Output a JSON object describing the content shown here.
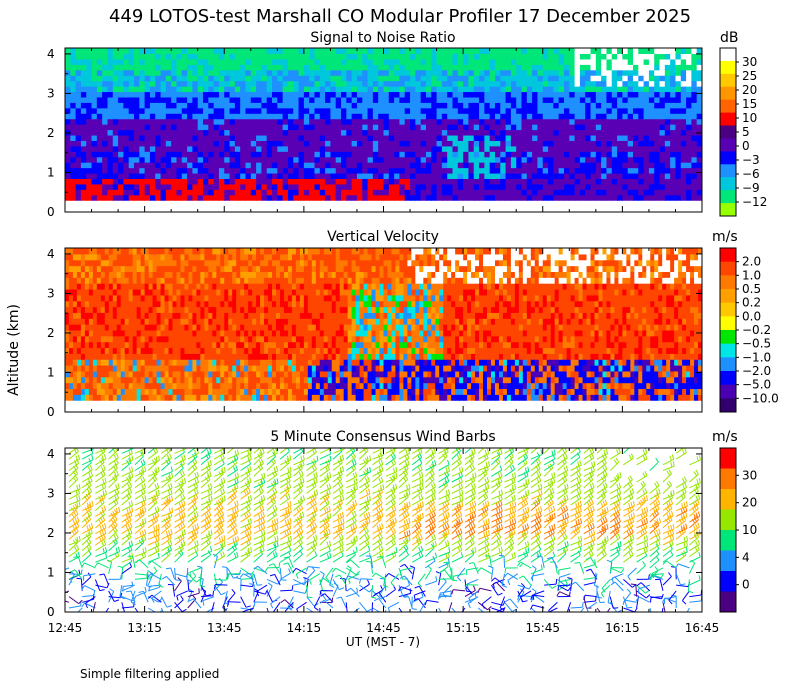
{
  "title": "449 LOTOS-test Marshall CO Modular Profiler 17 December 2025",
  "ylabel": "Altitude (km)",
  "xlabel": "UT  (MST - 7)",
  "note": "Simple filtering applied",
  "x_ticks": [
    "12:45",
    "13:15",
    "13:45",
    "14:15",
    "14:45",
    "15:15",
    "15:45",
    "16:15",
    "16:45"
  ],
  "y_ticks": [
    "0",
    "1",
    "2",
    "3",
    "4"
  ],
  "colors": {
    "white": "#ffffff",
    "yellow": "#ffff00",
    "light_orange": "#ffc800",
    "orange": "#ff9600",
    "dark_orange": "#ff6400",
    "red": "#ff0000",
    "dark_purple": "#4b0082",
    "purple": "#5a00b4",
    "blue": "#0000ff",
    "light_blue": "#1e90ff",
    "cyan": "#00c8dc",
    "green": "#00e678",
    "lime": "#96ff00"
  },
  "chart_data": [
    {
      "type": "heatmap",
      "title": "Signal to Noise Ratio",
      "x_range": [
        "12:45",
        "16:45"
      ],
      "ylim": [
        0,
        4
      ],
      "colorbar": {
        "unit": "dB",
        "labels": [
          "30",
          "25",
          "20",
          "15",
          "10",
          "5",
          "0",
          "−3",
          "−6",
          "−9",
          "−12"
        ],
        "colors": [
          "#ffffff",
          "#ffff00",
          "#ffc800",
          "#ff9600",
          "#ff6400",
          "#ff0000",
          "#4b0082",
          "#5a00b4",
          "#0000ff",
          "#1e90ff",
          "#00c8dc",
          "#00e678",
          "#96ff00"
        ]
      },
      "layers_km": [
        {
          "bottom": 0.3,
          "top": 0.8,
          "value_db": 12
        },
        {
          "bottom": 0.8,
          "top": 1.5,
          "value_db": -3
        },
        {
          "bottom": 1.5,
          "top": 2.3,
          "value_db": 2
        },
        {
          "bottom": 2.3,
          "top": 3.0,
          "value_db": -5
        },
        {
          "bottom": 3.0,
          "top": 3.6,
          "value_db": -8
        },
        {
          "bottom": 3.6,
          "top": 4.1,
          "value_db": -11
        }
      ]
    },
    {
      "type": "heatmap",
      "title": "Vertical Velocity",
      "x_range": [
        "12:45",
        "16:45"
      ],
      "ylim": [
        0,
        4
      ],
      "colorbar": {
        "unit": "m/s",
        "labels": [
          "2.0",
          "1.0",
          "0.5",
          "0.2",
          "0.0",
          "−0.2",
          "−0.5",
          "−1.0",
          "−2.0",
          "−5.0",
          "−10.0"
        ],
        "colors": [
          "#ff0000",
          "#ff4600",
          "#ff7800",
          "#ffa000",
          "#ffc800",
          "#ffff00",
          "#00e600",
          "#00e6e6",
          "#1e90ff",
          "#0000ff",
          "#4b00b4",
          "#32006e"
        ]
      },
      "layers_km": [
        {
          "bottom": 0.3,
          "top": 1.3,
          "value_ms": 0.6
        },
        {
          "bottom": 1.3,
          "top": 3.3,
          "value_ms": 1.5
        },
        {
          "bottom": 3.3,
          "top": 4.1,
          "value_ms": 0.8
        }
      ]
    },
    {
      "type": "wind_barbs",
      "title": "5 Minute Consensus Wind Barbs",
      "x_range": [
        "12:45",
        "16:45"
      ],
      "ylim": [
        0,
        4
      ],
      "colorbar": {
        "unit": "m/s",
        "labels": [
          "30",
          "20",
          "10",
          "4",
          "0"
        ],
        "colors": [
          "#ff0000",
          "#ff7800",
          "#ffb400",
          "#96e600",
          "#00e678",
          "#1e90ff",
          "#0000ff",
          "#4b0082"
        ]
      },
      "speed_profile_ms": [
        {
          "altitude_km": 0.5,
          "speed": 3
        },
        {
          "altitude_km": 1.0,
          "speed": 5
        },
        {
          "altitude_km": 1.5,
          "speed": 9
        },
        {
          "altitude_km": 2.0,
          "speed": 14
        },
        {
          "altitude_km": 2.5,
          "speed": 12
        },
        {
          "altitude_km": 3.0,
          "speed": 10
        },
        {
          "altitude_km": 3.5,
          "speed": 9
        },
        {
          "altitude_km": 4.0,
          "speed": 9
        }
      ]
    }
  ]
}
